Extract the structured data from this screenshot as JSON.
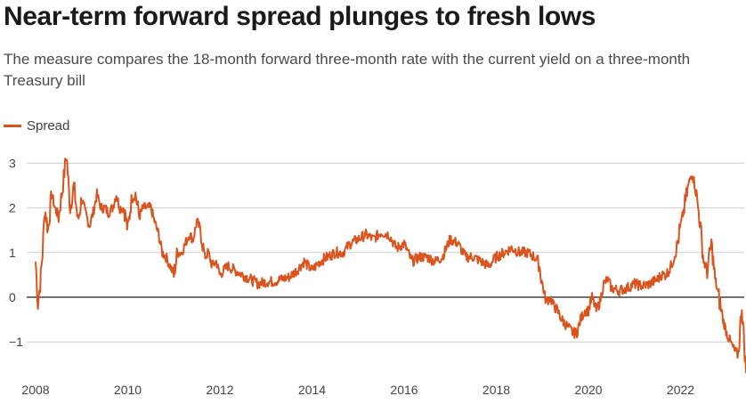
{
  "chart_data": {
    "type": "line",
    "title": "Near-term forward spread plunges to fresh lows",
    "subtitle": "The measure compares the 18-month forward three-month rate with the current yield on a three-month Treasury bill",
    "xlabel": "",
    "ylabel": "",
    "xlim": [
      2008.0,
      2023.42
    ],
    "ylim": [
      -1.9,
      3.4
    ],
    "x_ticks": [
      2008,
      2010,
      2012,
      2014,
      2016,
      2018,
      2020,
      2022
    ],
    "x_tick_labels": [
      "2008",
      "2010",
      "2012",
      "2014",
      "2016",
      "2018",
      "2020",
      "2022"
    ],
    "y_ticks": [
      3,
      2,
      1,
      0,
      -1
    ],
    "y_tick_labels": [
      "3",
      "2",
      "1",
      "0",
      "−1"
    ],
    "grid": true,
    "legend_position": "top-left",
    "series": [
      {
        "name": "Spread",
        "color": "#d9541e",
        "x": [
          2008.0,
          2008.05,
          2008.1,
          2008.15,
          2008.2,
          2008.27,
          2008.35,
          2008.42,
          2008.5,
          2008.58,
          2008.67,
          2008.75,
          2008.83,
          2008.92,
          2009.0,
          2009.08,
          2009.17,
          2009.25,
          2009.33,
          2009.42,
          2009.5,
          2009.58,
          2009.67,
          2009.75,
          2009.83,
          2009.92,
          2010.0,
          2010.08,
          2010.17,
          2010.25,
          2010.33,
          2010.42,
          2010.5,
          2010.58,
          2010.67,
          2010.75,
          2010.83,
          2010.92,
          2011.0,
          2011.08,
          2011.17,
          2011.25,
          2011.33,
          2011.42,
          2011.5,
          2011.58,
          2011.67,
          2011.75,
          2011.83,
          2011.92,
          2012.0,
          2012.17,
          2012.33,
          2012.5,
          2012.67,
          2012.83,
          2013.0,
          2013.17,
          2013.33,
          2013.5,
          2013.67,
          2013.83,
          2014.0,
          2014.17,
          2014.33,
          2014.5,
          2014.67,
          2014.83,
          2015.0,
          2015.17,
          2015.33,
          2015.5,
          2015.67,
          2015.83,
          2016.0,
          2016.17,
          2016.33,
          2016.5,
          2016.67,
          2016.83,
          2017.0,
          2017.17,
          2017.33,
          2017.5,
          2017.67,
          2017.83,
          2018.0,
          2018.17,
          2018.33,
          2018.5,
          2018.67,
          2018.83,
          2018.92,
          2019.0,
          2019.08,
          2019.17,
          2019.25,
          2019.33,
          2019.42,
          2019.5,
          2019.58,
          2019.67,
          2019.75,
          2019.83,
          2019.92,
          2020.0,
          2020.08,
          2020.17,
          2020.25,
          2020.33,
          2020.42,
          2020.5,
          2020.67,
          2020.83,
          2021.0,
          2021.17,
          2021.33,
          2021.5,
          2021.58,
          2021.67,
          2021.75,
          2021.83,
          2021.92,
          2022.0,
          2022.08,
          2022.17,
          2022.25,
          2022.33,
          2022.42,
          2022.5,
          2022.58,
          2022.67,
          2022.75,
          2022.83,
          2022.92,
          2023.0,
          2023.08,
          2023.17,
          2023.25,
          2023.33,
          2023.38,
          2023.42
        ],
        "values": [
          0.8,
          -0.15,
          0.3,
          1.0,
          2.0,
          1.5,
          2.3,
          2.0,
          1.8,
          2.4,
          3.2,
          2.0,
          2.5,
          1.7,
          2.2,
          1.9,
          1.6,
          1.9,
          2.3,
          2.0,
          2.0,
          1.9,
          2.0,
          2.3,
          2.0,
          2.0,
          1.5,
          2.2,
          2.3,
          1.8,
          2.0,
          2.0,
          2.0,
          1.7,
          1.4,
          1.0,
          0.9,
          0.7,
          0.5,
          1.0,
          1.0,
          1.2,
          1.4,
          1.3,
          1.7,
          1.5,
          0.9,
          1.0,
          0.7,
          0.8,
          0.5,
          0.7,
          0.6,
          0.5,
          0.4,
          0.3,
          0.35,
          0.35,
          0.4,
          0.45,
          0.6,
          0.8,
          0.6,
          0.8,
          0.9,
          1.0,
          1.0,
          1.2,
          1.3,
          1.4,
          1.3,
          1.45,
          1.4,
          1.1,
          1.2,
          0.8,
          0.9,
          0.9,
          0.8,
          0.9,
          1.3,
          1.2,
          0.9,
          0.9,
          0.8,
          0.7,
          0.9,
          1.0,
          1.1,
          1.0,
          1.0,
          0.9,
          0.8,
          0.3,
          -0.1,
          0.0,
          -0.2,
          -0.3,
          -0.5,
          -0.6,
          -0.7,
          -0.8,
          -0.8,
          -0.5,
          -0.3,
          -0.3,
          0.0,
          -0.3,
          -0.1,
          0.3,
          0.4,
          0.2,
          0.15,
          0.2,
          0.3,
          0.25,
          0.3,
          0.4,
          0.5,
          0.5,
          0.6,
          0.8,
          1.1,
          1.6,
          2.0,
          2.5,
          2.8,
          2.4,
          1.7,
          0.8,
          0.6,
          1.2,
          0.4,
          0.0,
          -0.5,
          -0.8,
          -1.0,
          -1.2,
          -1.3,
          -0.2,
          -1.0,
          -1.7
        ]
      }
    ]
  }
}
